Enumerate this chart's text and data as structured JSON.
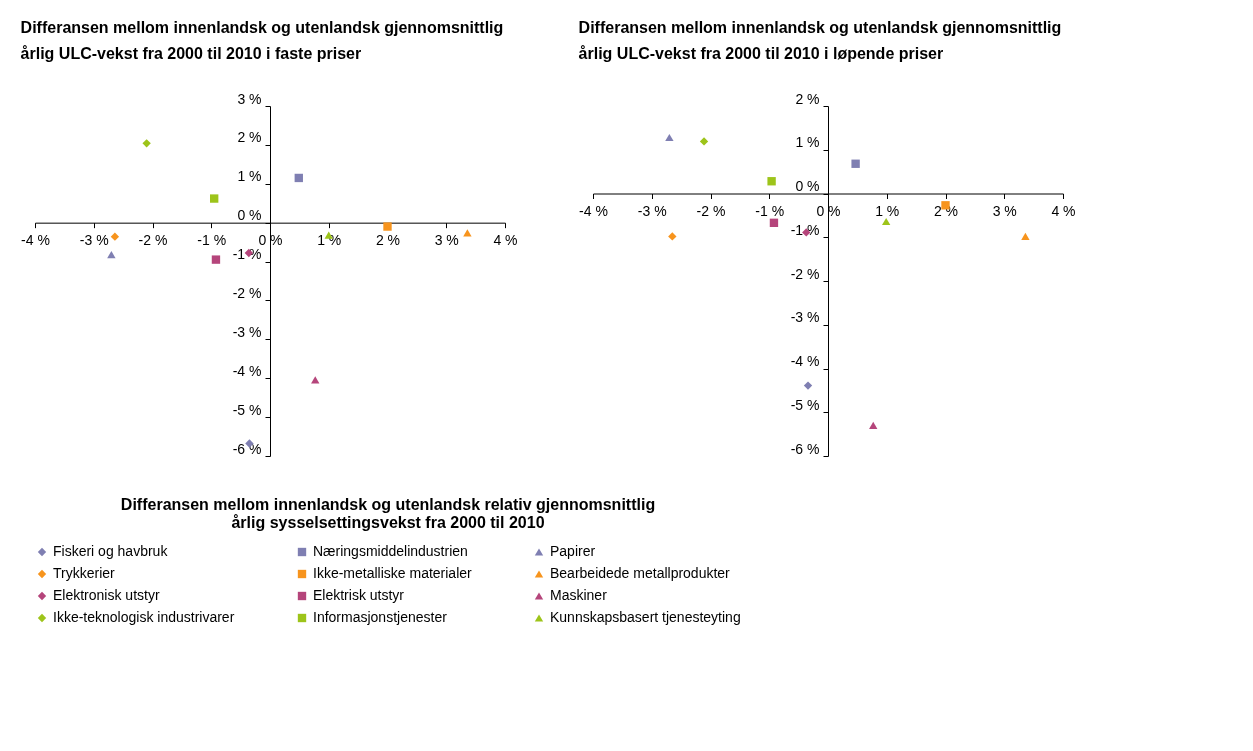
{
  "chart_data": [
    {
      "type": "scatter",
      "title": "Differansen mellom innenlandsk og utenlandsk gjennomsnittlig årlig ULC-vekst fra 2000 til 2010 i faste priser",
      "legend_title": "Differansen mellom innenlandsk og utenlandsk relativ gjennomsnittlig årlig sysselsettingsvekst fra 2000 til 2010",
      "legend": "bottom",
      "xlim": [
        -4,
        4
      ],
      "ylim": [
        -6,
        3
      ],
      "xticks": [
        {
          "value": -4,
          "label": "-4 %"
        },
        {
          "value": -3,
          "label": "-3 %"
        },
        {
          "value": -2,
          "label": "-2 %"
        },
        {
          "value": -1,
          "label": "-1 %"
        },
        {
          "value": 0,
          "label": "0 %"
        },
        {
          "value": 1,
          "label": "1 %"
        },
        {
          "value": 2,
          "label": "2 %"
        },
        {
          "value": 3,
          "label": "3 %"
        },
        {
          "value": 4,
          "label": "4 %"
        }
      ],
      "yticks": [
        {
          "value": -6,
          "label": "-6 %"
        },
        {
          "value": -5,
          "label": "-5 %"
        },
        {
          "value": -4,
          "label": "-4 %"
        },
        {
          "value": -3,
          "label": "-3 %"
        },
        {
          "value": -2,
          "label": "-2 %"
        },
        {
          "value": -1,
          "label": "-1 %"
        },
        {
          "value": 0,
          "label": "0 %"
        },
        {
          "value": 1,
          "label": "1 %"
        },
        {
          "value": 2,
          "label": "2 %"
        },
        {
          "value": 3,
          "label": "3 %"
        }
      ],
      "series": [
        {
          "name": "Fiskeri og havbruk",
          "color": "#7f7fb2",
          "marker": "diamond",
          "x": [
            -0.35
          ],
          "values": [
            -5.68
          ]
        },
        {
          "name": "Næringsmiddelindustrien",
          "color": "#7f7fb2",
          "marker": "square",
          "x": [
            0.49
          ],
          "values": [
            1.15
          ]
        },
        {
          "name": "Papirer",
          "color": "#7f7fb2",
          "marker": "triangle",
          "x": [
            -2.7
          ],
          "values": [
            -0.82
          ]
        },
        {
          "name": "Trykkerier",
          "color": "#f7941d",
          "marker": "diamond",
          "x": [
            -2.64
          ],
          "values": [
            -0.36
          ]
        },
        {
          "name": "Ikke-metalliske materialer",
          "color": "#f7941d",
          "marker": "square",
          "x": [
            2.0
          ],
          "values": [
            -0.1
          ]
        },
        {
          "name": "Bearbeidede metallprodukter",
          "color": "#f7941d",
          "marker": "triangle",
          "x": [
            3.36
          ],
          "values": [
            -0.26
          ]
        },
        {
          "name": "Elektronisk utstyr",
          "color": "#b5457b",
          "marker": "diamond",
          "x": [
            -0.36
          ],
          "values": [
            -0.78
          ]
        },
        {
          "name": "Elektrisk utstyr",
          "color": "#b5457b",
          "marker": "square",
          "x": [
            -0.92
          ],
          "values": [
            -0.95
          ]
        },
        {
          "name": "Maskiner",
          "color": "#b5457b",
          "marker": "triangle",
          "x": [
            0.77
          ],
          "values": [
            -4.04
          ]
        },
        {
          "name": "Ikke-teknologisk industrivarer",
          "color": "#9dc41a",
          "marker": "diamond",
          "x": [
            -2.1
          ],
          "values": [
            2.04
          ]
        },
        {
          "name": "Informasjonstjenester",
          "color": "#9dc41a",
          "marker": "square",
          "x": [
            -0.95
          ],
          "values": [
            0.62
          ]
        },
        {
          "name": "Kunnskapsbasert tjenesteyting",
          "color": "#9dc41a",
          "marker": "triangle",
          "x": [
            1.0
          ],
          "values": [
            -0.32
          ]
        }
      ]
    },
    {
      "type": "scatter",
      "title": "Differansen mellom innenlandsk og utenlandsk gjennomsnittlig årlig ULC-vekst fra 2000 til 2010 i løpende priser",
      "xlim": [
        -4,
        4
      ],
      "ylim": [
        -6,
        2
      ],
      "xticks": [
        {
          "value": -4,
          "label": "-4 %"
        },
        {
          "value": -3,
          "label": "-3 %"
        },
        {
          "value": -2,
          "label": "-2 %"
        },
        {
          "value": -1,
          "label": "-1 %"
        },
        {
          "value": 0,
          "label": "0 %"
        },
        {
          "value": 1,
          "label": "1 %"
        },
        {
          "value": 2,
          "label": "2 %"
        },
        {
          "value": 3,
          "label": "3 %"
        },
        {
          "value": 4,
          "label": "4 %"
        }
      ],
      "yticks": [
        {
          "value": -6,
          "label": "-6 %"
        },
        {
          "value": -5,
          "label": "-5 %"
        },
        {
          "value": -4,
          "label": "-4 %"
        },
        {
          "value": -3,
          "label": "-3 %"
        },
        {
          "value": -2,
          "label": "-2 %"
        },
        {
          "value": -1,
          "label": "-1 %"
        },
        {
          "value": 0,
          "label": "0 %"
        },
        {
          "value": 1,
          "label": "1 %"
        },
        {
          "value": 2,
          "label": "2 %"
        }
      ],
      "series": [
        {
          "name": "Fiskeri og havbruk",
          "color": "#7f7fb2",
          "marker": "diamond",
          "x": [
            -0.34
          ],
          "values": [
            -4.39
          ]
        },
        {
          "name": "Næringsmiddelindustrien",
          "color": "#7f7fb2",
          "marker": "square",
          "x": [
            0.47
          ],
          "values": [
            0.68
          ]
        },
        {
          "name": "Papirer",
          "color": "#7f7fb2",
          "marker": "triangle",
          "x": [
            -2.7
          ],
          "values": [
            1.28
          ]
        },
        {
          "name": "Trykkerier",
          "color": "#f7941d",
          "marker": "diamond",
          "x": [
            -2.65
          ],
          "values": [
            -0.98
          ]
        },
        {
          "name": "Ikke-metalliske materialer",
          "color": "#f7941d",
          "marker": "square",
          "x": [
            2.0
          ],
          "values": [
            -0.27
          ]
        },
        {
          "name": "Bearbeidede metallprodukter",
          "color": "#f7941d",
          "marker": "triangle",
          "x": [
            3.36
          ],
          "values": [
            -0.98
          ]
        },
        {
          "name": "Elektronisk utstyr",
          "color": "#b5457b",
          "marker": "diamond",
          "x": [
            -0.37
          ],
          "values": [
            -0.89
          ]
        },
        {
          "name": "Elektrisk utstyr",
          "color": "#b5457b",
          "marker": "square",
          "x": [
            -0.92
          ],
          "values": [
            -0.67
          ]
        },
        {
          "name": "Maskiner",
          "color": "#b5457b",
          "marker": "triangle",
          "x": [
            0.77
          ],
          "values": [
            -5.3
          ]
        },
        {
          "name": "Ikke-teknologisk industrivarer",
          "color": "#9dc41a",
          "marker": "diamond",
          "x": [
            -2.11
          ],
          "values": [
            1.19
          ]
        },
        {
          "name": "Informasjonstjenester",
          "color": "#9dc41a",
          "marker": "square",
          "x": [
            -0.96
          ],
          "values": [
            0.28
          ]
        },
        {
          "name": "Kunnskapsbasert tjenesteyting",
          "color": "#9dc41a",
          "marker": "triangle",
          "x": [
            0.99
          ],
          "values": [
            -0.64
          ]
        }
      ]
    }
  ]
}
